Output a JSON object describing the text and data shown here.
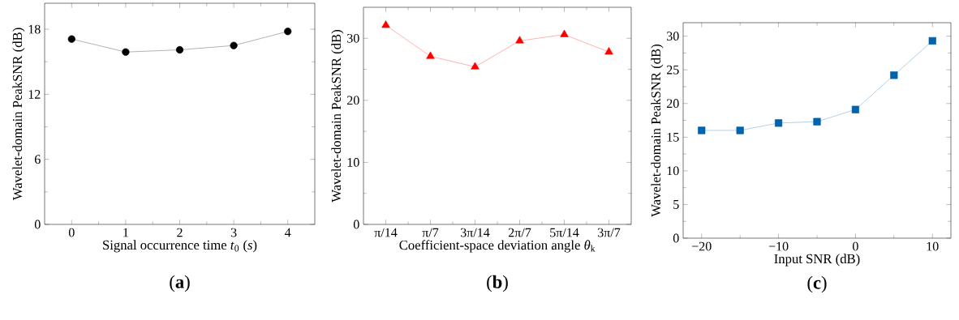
{
  "chart_data": [
    {
      "type": "line",
      "xlabel": "Signal occurrence time *t*$_{0}$ (*s*)",
      "ylabel": "Wavelet-domain PeakSNR (dB)",
      "annotations": [
        "(**a**)"
      ],
      "x": [
        0,
        1,
        2,
        3,
        4
      ],
      "series": [
        {
          "color": "#000000",
          "values": [
            17.1,
            15.9,
            16.1,
            16.5,
            17.8
          ]
        }
      ],
      "xlim": [
        -0.5,
        4.5
      ],
      "xticks": [
        0,
        1,
        2,
        3,
        4
      ],
      "ylim": [
        0,
        20.4
      ],
      "yticks": [
        0,
        6,
        12,
        18
      ],
      "marker": "circle",
      "line_style": "solid"
    },
    {
      "type": "line",
      "xlabel": "Coefficient-space deviation angle *θ*$_{k}$",
      "ylabel": "Wavelet-domain PeakSNR (dB)",
      "annotations": [
        "(**b**)"
      ],
      "categories": [
        "π/14",
        "π/7",
        "3π/14",
        "2π/7",
        "5π/14",
        "3π/7"
      ],
      "series": [
        {
          "color": "#ff0000",
          "values": [
            32.1,
            27.1,
            25.4,
            29.6,
            30.6,
            27.8
          ]
        }
      ],
      "ylim": [
        0,
        35
      ],
      "yticks": [
        0,
        10,
        20,
        30
      ],
      "marker": "triangle",
      "line_style": "solid"
    },
    {
      "type": "line",
      "xlabel": "Input SNR (dB)",
      "ylabel": "Wavelet-domain PeakSNR (dB)",
      "annotations": [
        "(**c**)"
      ],
      "x": [
        -20,
        -15,
        -10,
        -5,
        0,
        5,
        10
      ],
      "series": [
        {
          "color": "#0063ad",
          "values": [
            16.0,
            16.0,
            17.1,
            17.3,
            19.1,
            24.2,
            29.3
          ]
        }
      ],
      "xlim": [
        -22.4,
        12.4
      ],
      "xticks": [
        {
          "value": -20,
          "label": "−20"
        },
        {
          "value": -10,
          "label": "−10"
        },
        0,
        10
      ],
      "ylim": [
        0,
        32
      ],
      "yticks": [
        0,
        5,
        10,
        15,
        20,
        25,
        30
      ],
      "marker": "square",
      "line_style": "solid"
    }
  ]
}
